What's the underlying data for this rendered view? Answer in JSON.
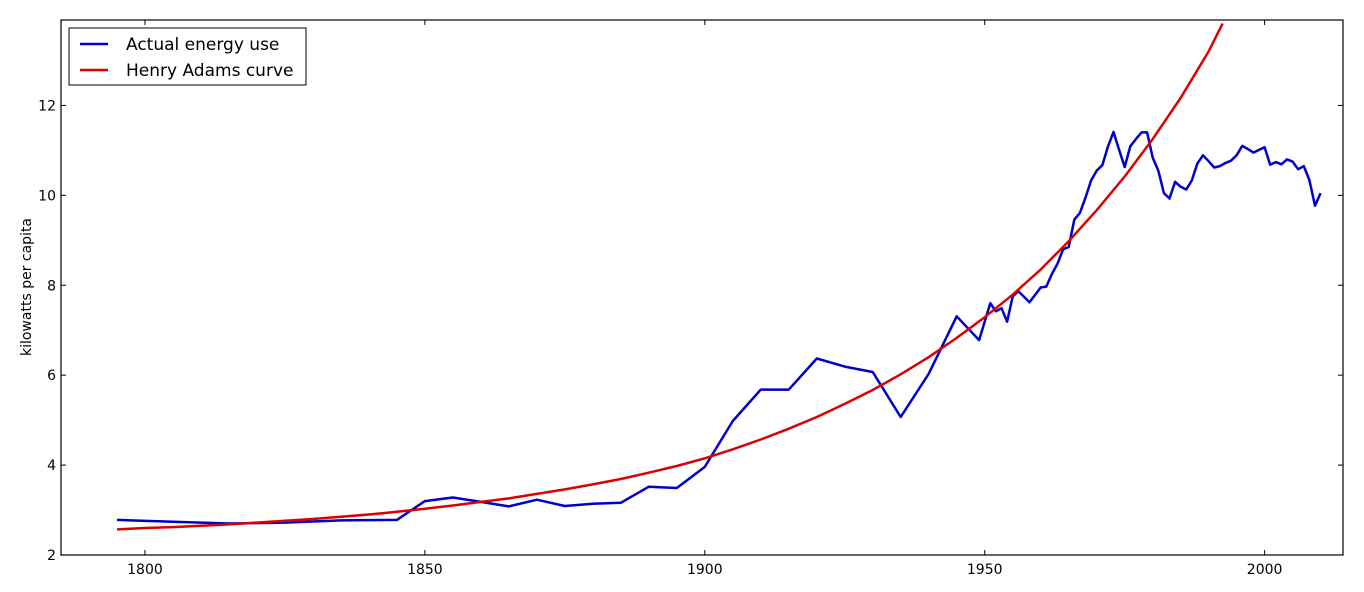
{
  "chart_data": {
    "type": "line",
    "title": "",
    "xlabel": "",
    "ylabel": "kilowatts per capita",
    "xlim": [
      1785,
      2014
    ],
    "ylim": [
      2,
      13.9
    ],
    "xticks": [
      1800,
      1850,
      1900,
      1950,
      2000
    ],
    "yticks": [
      2,
      4,
      6,
      8,
      10,
      12
    ],
    "grid": false,
    "legend_position": "top-left",
    "series": [
      {
        "name": "Actual energy use",
        "color": "#0000cc",
        "points": [
          [
            1795,
            2.78
          ],
          [
            1805,
            2.74
          ],
          [
            1815,
            2.7
          ],
          [
            1825,
            2.72
          ],
          [
            1835,
            2.77
          ],
          [
            1845,
            2.78
          ],
          [
            1850,
            3.2
          ],
          [
            1855,
            3.28
          ],
          [
            1860,
            3.18
          ],
          [
            1865,
            3.08
          ],
          [
            1870,
            3.23
          ],
          [
            1875,
            3.09
          ],
          [
            1880,
            3.14
          ],
          [
            1885,
            3.16
          ],
          [
            1890,
            3.52
          ],
          [
            1895,
            3.49
          ],
          [
            1900,
            3.96
          ],
          [
            1905,
            4.98
          ],
          [
            1910,
            5.68
          ],
          [
            1915,
            5.68
          ],
          [
            1920,
            6.37
          ],
          [
            1925,
            6.19
          ],
          [
            1930,
            6.07
          ],
          [
            1935,
            5.07
          ],
          [
            1940,
            6.03
          ],
          [
            1945,
            7.31
          ],
          [
            1949,
            6.78
          ],
          [
            1951,
            7.6
          ],
          [
            1952,
            7.42
          ],
          [
            1953,
            7.49
          ],
          [
            1954,
            7.19
          ],
          [
            1955,
            7.75
          ],
          [
            1956,
            7.87
          ],
          [
            1958,
            7.62
          ],
          [
            1960,
            7.95
          ],
          [
            1961,
            7.97
          ],
          [
            1962,
            8.25
          ],
          [
            1963,
            8.48
          ],
          [
            1964,
            8.8
          ],
          [
            1965,
            8.85
          ],
          [
            1966,
            9.46
          ],
          [
            1967,
            9.61
          ],
          [
            1968,
            9.95
          ],
          [
            1969,
            10.33
          ],
          [
            1970,
            10.55
          ],
          [
            1971,
            10.67
          ],
          [
            1972,
            11.08
          ],
          [
            1973,
            11.41
          ],
          [
            1974,
            11.01
          ],
          [
            1975,
            10.63
          ],
          [
            1976,
            11.09
          ],
          [
            1977,
            11.25
          ],
          [
            1978,
            11.4
          ],
          [
            1979,
            11.4
          ],
          [
            1980,
            10.84
          ],
          [
            1981,
            10.55
          ],
          [
            1982,
            10.05
          ],
          [
            1983,
            9.93
          ],
          [
            1984,
            10.3
          ],
          [
            1985,
            10.19
          ],
          [
            1986,
            10.13
          ],
          [
            1987,
            10.33
          ],
          [
            1988,
            10.71
          ],
          [
            1989,
            10.89
          ],
          [
            1990,
            10.76
          ],
          [
            1991,
            10.62
          ],
          [
            1992,
            10.65
          ],
          [
            1993,
            10.72
          ],
          [
            1994,
            10.77
          ],
          [
            1995,
            10.89
          ],
          [
            1996,
            11.1
          ],
          [
            1997,
            11.03
          ],
          [
            1998,
            10.95
          ],
          [
            1999,
            11.01
          ],
          [
            2000,
            11.07
          ],
          [
            2001,
            10.68
          ],
          [
            2002,
            10.74
          ],
          [
            2003,
            10.69
          ],
          [
            2004,
            10.8
          ],
          [
            2005,
            10.75
          ],
          [
            2006,
            10.58
          ],
          [
            2007,
            10.65
          ],
          [
            2008,
            10.34
          ],
          [
            2009,
            9.77
          ],
          [
            2010,
            10.05
          ]
        ]
      },
      {
        "name": "Henry Adams curve",
        "color": "#dd0000",
        "points": [
          [
            1795,
            2.57
          ],
          [
            1800,
            2.6
          ],
          [
            1805,
            2.62
          ],
          [
            1810,
            2.65
          ],
          [
            1815,
            2.68
          ],
          [
            1820,
            2.72
          ],
          [
            1825,
            2.76
          ],
          [
            1830,
            2.8
          ],
          [
            1835,
            2.85
          ],
          [
            1840,
            2.9
          ],
          [
            1845,
            2.96
          ],
          [
            1850,
            3.03
          ],
          [
            1855,
            3.1
          ],
          [
            1860,
            3.18
          ],
          [
            1865,
            3.26
          ],
          [
            1870,
            3.36
          ],
          [
            1875,
            3.46
          ],
          [
            1880,
            3.57
          ],
          [
            1885,
            3.69
          ],
          [
            1890,
            3.83
          ],
          [
            1895,
            3.98
          ],
          [
            1900,
            4.15
          ],
          [
            1905,
            4.35
          ],
          [
            1910,
            4.57
          ],
          [
            1915,
            4.81
          ],
          [
            1920,
            5.07
          ],
          [
            1925,
            5.36
          ],
          [
            1930,
            5.67
          ],
          [
            1935,
            6.02
          ],
          [
            1940,
            6.4
          ],
          [
            1945,
            6.83
          ],
          [
            1950,
            7.29
          ],
          [
            1955,
            7.79
          ],
          [
            1960,
            8.35
          ],
          [
            1965,
            8.98
          ],
          [
            1970,
            9.67
          ],
          [
            1975,
            10.42
          ],
          [
            1980,
            11.25
          ],
          [
            1985,
            12.17
          ],
          [
            1990,
            13.2
          ],
          [
            1992.5,
            13.82
          ]
        ]
      }
    ]
  }
}
